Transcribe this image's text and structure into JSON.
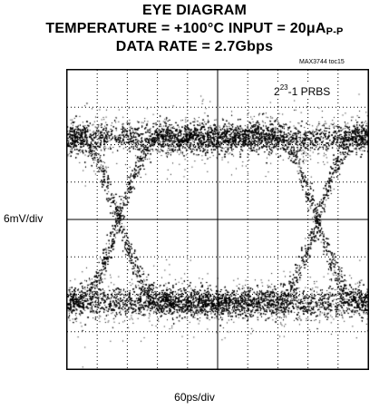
{
  "title": {
    "line1": "EYE DIAGRAM",
    "line2_main": "TEMPERATURE = +100°C INPUT = 20μA",
    "line2_sub": "P-P",
    "line3": "DATA RATE = 2.7Gbps"
  },
  "figure_tag": "MAX3744 toc15",
  "y_scale_label": "6mV/div",
  "x_scale_label": "60ps/div",
  "annotation": {
    "prefix": "2",
    "exponent": "23",
    "suffix": "-1 PRBS"
  },
  "colors": {
    "trace": "#000000",
    "background": "#ffffff",
    "grid": "#000000"
  },
  "chart_data": {
    "type": "scatter",
    "subtype": "eye-diagram",
    "divisions": {
      "x": 10,
      "y": 8
    },
    "x_scale_per_div": "60ps/div",
    "y_scale_per_div": "6mV/div",
    "grid": "dotted",
    "center_crosshair": true,
    "eye": {
      "crossing_points_div": [
        1.7,
        8.3
      ],
      "high_level_div": 2.2,
      "low_level_div": -2.2,
      "noise_band_div": 0.45
    }
  }
}
